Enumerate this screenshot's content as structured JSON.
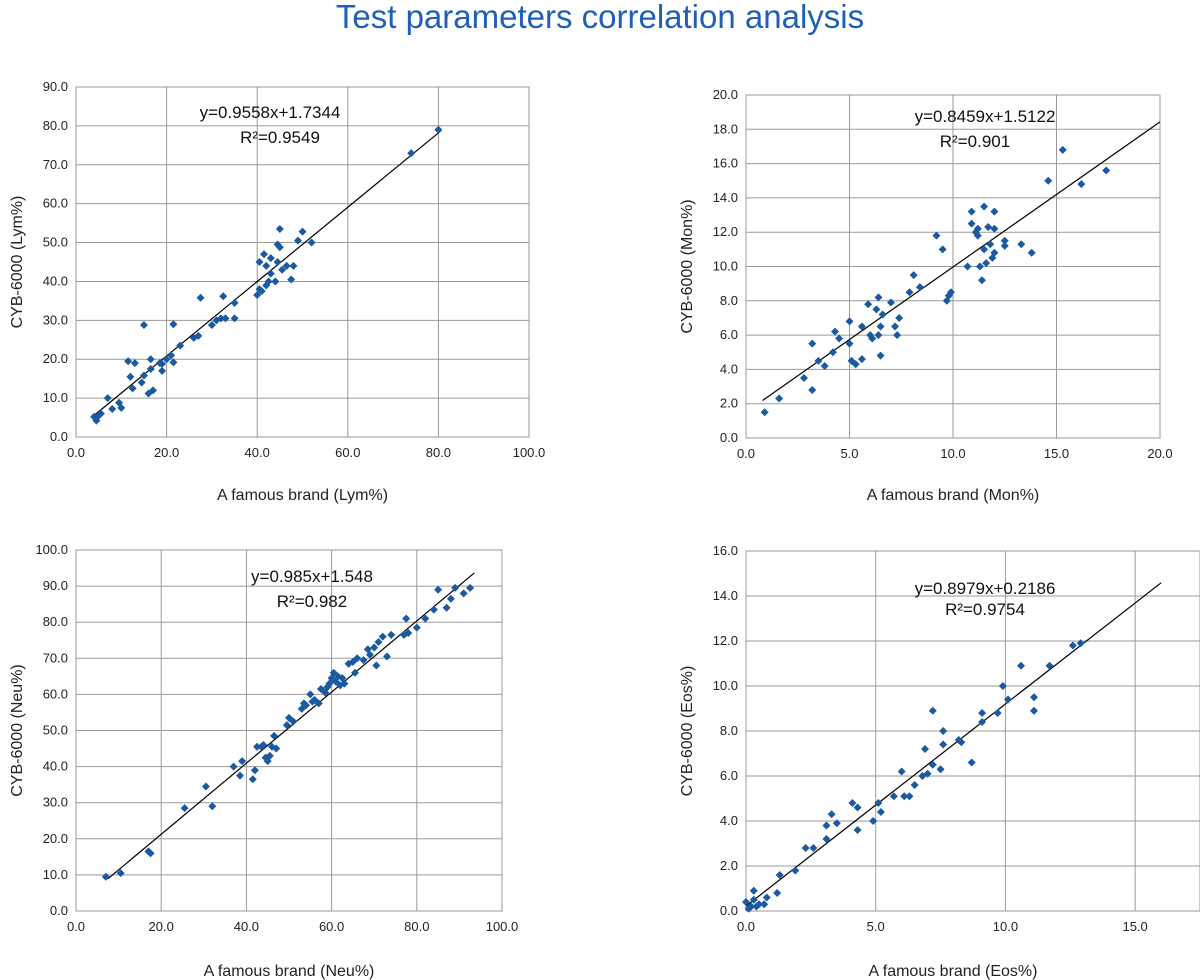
{
  "title": "Test parameters correlation analysis",
  "colors": {
    "title": "#1f5fb5",
    "marker": "#1a5aa0",
    "grid": "#9a9a9a",
    "fit_line": "#000000"
  },
  "chart_data": [
    {
      "type": "scatter",
      "xlabel": "A famous brand (Lym%)",
      "ylabel": "CYB-6000 (Lym%)",
      "equation": "y=0.9558x+1.7344",
      "r_squared": "R²=0.9549",
      "xlim": [
        0,
        100
      ],
      "ylim": [
        0,
        90
      ],
      "xticks": [
        "0.0",
        "20.0",
        "40.0",
        "60.0",
        "80.0",
        "100.0"
      ],
      "yticks": [
        "0.0",
        "10.0",
        "20.0",
        "30.0",
        "40.0",
        "50.0",
        "60.0",
        "70.0",
        "80.0",
        "90.0"
      ],
      "grid": true,
      "trendline": {
        "slope": 0.9558,
        "intercept": 1.7344,
        "x_range": [
          4,
          80.5
        ]
      },
      "points": [
        [
          4,
          5.2
        ],
        [
          4.5,
          4.2
        ],
        [
          5,
          5.5
        ],
        [
          5.5,
          6
        ],
        [
          7,
          10
        ],
        [
          8,
          7.2
        ],
        [
          9.5,
          8.8
        ],
        [
          10,
          7.5
        ],
        [
          11.5,
          19.5
        ],
        [
          12,
          15.5
        ],
        [
          12.5,
          12.5
        ],
        [
          13,
          19
        ],
        [
          14.5,
          14
        ],
        [
          15,
          15.8
        ],
        [
          15,
          28.8
        ],
        [
          16,
          11.2
        ],
        [
          16.5,
          20
        ],
        [
          17,
          12
        ],
        [
          16.5,
          17.5
        ],
        [
          18.5,
          19
        ],
        [
          19,
          17
        ],
        [
          19,
          18.8
        ],
        [
          20,
          20
        ],
        [
          21,
          21
        ],
        [
          21.5,
          29
        ],
        [
          21.5,
          19.2
        ],
        [
          23,
          23.5
        ],
        [
          26,
          25.5
        ],
        [
          27,
          26
        ],
        [
          27.5,
          35.8
        ],
        [
          30,
          28.8
        ],
        [
          31,
          30
        ],
        [
          32,
          30.5
        ],
        [
          32.5,
          36.2
        ],
        [
          33,
          30.5
        ],
        [
          35,
          34.5
        ],
        [
          35,
          30.5
        ],
        [
          40,
          36.5
        ],
        [
          40.5,
          38
        ],
        [
          40.5,
          45
        ],
        [
          41,
          37.5
        ],
        [
          41.5,
          47
        ],
        [
          42,
          39
        ],
        [
          42,
          44
        ],
        [
          42.5,
          40
        ],
        [
          43,
          42
        ],
        [
          43,
          46
        ],
        [
          44,
          40
        ],
        [
          44.5,
          49.5
        ],
        [
          44.5,
          45
        ],
        [
          45,
          48.8
        ],
        [
          45,
          53.5
        ],
        [
          45.5,
          43
        ],
        [
          46.5,
          44
        ],
        [
          47.5,
          40.5
        ],
        [
          48,
          44
        ],
        [
          49,
          50.5
        ],
        [
          50,
          52.8
        ],
        [
          52,
          50
        ],
        [
          74,
          73
        ],
        [
          80,
          79
        ]
      ]
    },
    {
      "type": "scatter",
      "xlabel": "A famous brand (Mon%)",
      "ylabel": "CYB-6000 (Mon%)",
      "equation": "y=0.8459x+1.5122",
      "r_squared": "R²=0.901",
      "xlim": [
        0,
        20
      ],
      "ylim": [
        0,
        20
      ],
      "xticks": [
        "0.0",
        "5.0",
        "10.0",
        "15.0",
        "20.0"
      ],
      "yticks": [
        "0.0",
        "2.0",
        "4.0",
        "6.0",
        "8.0",
        "10.0",
        "12.0",
        "14.0",
        "16.0",
        "18.0",
        "20.0"
      ],
      "grid": true,
      "trendline": {
        "slope": 0.8459,
        "intercept": 1.5122,
        "x_range": [
          0.8,
          20
        ]
      },
      "points": [
        [
          0.9,
          1.5
        ],
        [
          1.6,
          2.3
        ],
        [
          2.8,
          3.5
        ],
        [
          3.2,
          2.8
        ],
        [
          3.2,
          5.5
        ],
        [
          3.5,
          4.5
        ],
        [
          3.8,
          4.2
        ],
        [
          4.2,
          5
        ],
        [
          4.3,
          6.2
        ],
        [
          4.5,
          5.8
        ],
        [
          5,
          6.8
        ],
        [
          5,
          5.5
        ],
        [
          5.1,
          4.5
        ],
        [
          5.3,
          4.3
        ],
        [
          5.6,
          6.5
        ],
        [
          5.6,
          4.6
        ],
        [
          5.9,
          7.8
        ],
        [
          6,
          6
        ],
        [
          6.1,
          5.8
        ],
        [
          6.3,
          7.5
        ],
        [
          6.4,
          6
        ],
        [
          6.4,
          8.2
        ],
        [
          6.5,
          4.8
        ],
        [
          6.5,
          6.5
        ],
        [
          6.6,
          7.2
        ],
        [
          7,
          7.9
        ],
        [
          7.2,
          6.5
        ],
        [
          7.3,
          6
        ],
        [
          7.4,
          7
        ],
        [
          7.9,
          8.5
        ],
        [
          8.1,
          9.5
        ],
        [
          8.4,
          8.8
        ],
        [
          9.2,
          11.8
        ],
        [
          9.5,
          11
        ],
        [
          9.7,
          8
        ],
        [
          9.8,
          8.3
        ],
        [
          9.9,
          8.5
        ],
        [
          10.7,
          10
        ],
        [
          10.9,
          12.5
        ],
        [
          10.9,
          13.2
        ],
        [
          11.1,
          12
        ],
        [
          11.2,
          12.2
        ],
        [
          11.2,
          11.8
        ],
        [
          11.3,
          10
        ],
        [
          11.4,
          9.2
        ],
        [
          11.5,
          13.5
        ],
        [
          11.5,
          11
        ],
        [
          11.6,
          10.2
        ],
        [
          11.7,
          12.3
        ],
        [
          11.8,
          11.3
        ],
        [
          11.9,
          10.5
        ],
        [
          12,
          12.2
        ],
        [
          12,
          10.8
        ],
        [
          12,
          13.2
        ],
        [
          12.5,
          11.5
        ],
        [
          12.5,
          11.2
        ],
        [
          13.3,
          11.3
        ],
        [
          13.8,
          10.8
        ],
        [
          14.6,
          15
        ],
        [
          15.3,
          16.8
        ],
        [
          16.2,
          14.8
        ],
        [
          17.4,
          15.6
        ]
      ]
    },
    {
      "type": "scatter",
      "xlabel": "A famous brand (Neu%)",
      "ylabel": "CYB-6000 (Neu%)",
      "equation": "y=0.985x+1.548",
      "r_squared": "R²=0.982",
      "xlim": [
        0,
        100
      ],
      "ylim": [
        0,
        100
      ],
      "xticks": [
        "0.0",
        "20.0",
        "40.0",
        "60.0",
        "80.0",
        "100.0"
      ],
      "yticks": [
        "0.0",
        "10.0",
        "20.0",
        "30.0",
        "40.0",
        "50.0",
        "60.0",
        "70.0",
        "80.0",
        "90.0",
        "100.0"
      ],
      "grid": true,
      "trendline": {
        "slope": 0.985,
        "intercept": 1.548,
        "x_range": [
          7.5,
          93.5
        ]
      },
      "points": [
        [
          7,
          9.5
        ],
        [
          10.5,
          10.5
        ],
        [
          17,
          16.5
        ],
        [
          17.5,
          16
        ],
        [
          25.5,
          28.5
        ],
        [
          30.5,
          34.5
        ],
        [
          32,
          29
        ],
        [
          37,
          40
        ],
        [
          38.5,
          37.5
        ],
        [
          39,
          41.5
        ],
        [
          41.5,
          36.5
        ],
        [
          42,
          39
        ],
        [
          42.5,
          45.5
        ],
        [
          43.5,
          45.5
        ],
        [
          44,
          46
        ],
        [
          44.5,
          42.5
        ],
        [
          45,
          41.5
        ],
        [
          45.5,
          43
        ],
        [
          46,
          45.5
        ],
        [
          46.5,
          48.5
        ],
        [
          47,
          45
        ],
        [
          49.5,
          51.5
        ],
        [
          50,
          53.5
        ],
        [
          51,
          52.5
        ],
        [
          53,
          56
        ],
        [
          53.5,
          57.5
        ],
        [
          54,
          57
        ],
        [
          55,
          60
        ],
        [
          55.5,
          58
        ],
        [
          56,
          58.5
        ],
        [
          57,
          57.5
        ],
        [
          57.5,
          61.5
        ],
        [
          58.5,
          60.5
        ],
        [
          59,
          62
        ],
        [
          59.5,
          63
        ],
        [
          60,
          64.5
        ],
        [
          60.5,
          66
        ],
        [
          61,
          63.5
        ],
        [
          61.5,
          65
        ],
        [
          62,
          62.5
        ],
        [
          62.5,
          64.5
        ],
        [
          63,
          63
        ],
        [
          64,
          68.5
        ],
        [
          65,
          69
        ],
        [
          65.5,
          66
        ],
        [
          66,
          70
        ],
        [
          67.5,
          69.5
        ],
        [
          68.5,
          72.5
        ],
        [
          69,
          71
        ],
        [
          70,
          73
        ],
        [
          70.5,
          68
        ],
        [
          71,
          74.5
        ],
        [
          72,
          76
        ],
        [
          73,
          70.5
        ],
        [
          74,
          76.5
        ],
        [
          77,
          76.5
        ],
        [
          77.5,
          81
        ],
        [
          78,
          77
        ],
        [
          80,
          78.5
        ],
        [
          82,
          81
        ],
        [
          84,
          83.5
        ],
        [
          85,
          89
        ],
        [
          87,
          84
        ],
        [
          88,
          86.5
        ],
        [
          89,
          89.5
        ],
        [
          91,
          88
        ],
        [
          92.5,
          89.5
        ]
      ]
    },
    {
      "type": "scatter",
      "xlabel": "A famous brand (Eos%)",
      "ylabel": "CYB-6000 (Eos%)",
      "equation": "y=0.8979x+0.2186",
      "r_squared": "R²=0.9754",
      "xlim": [
        0,
        17.5
      ],
      "ylim": [
        0,
        16
      ],
      "xticks": [
        "0.0",
        "5.0",
        "10.0",
        "15.0"
      ],
      "yticks": [
        "0.0",
        "2.0",
        "4.0",
        "6.0",
        "8.0",
        "10.0",
        "12.0",
        "14.0",
        "16.0"
      ],
      "grid": true,
      "trendline": {
        "slope": 0.8979,
        "intercept": 0.2186,
        "x_range": [
          0,
          16
        ]
      },
      "points": [
        [
          0,
          0.4
        ],
        [
          0.1,
          0.1
        ],
        [
          0.2,
          0.2
        ],
        [
          0.3,
          0.9
        ],
        [
          0.3,
          0.5
        ],
        [
          0.4,
          0.2
        ],
        [
          0.5,
          0.3
        ],
        [
          0.7,
          0.3
        ],
        [
          0.8,
          0.6
        ],
        [
          1.2,
          0.8
        ],
        [
          1.3,
          1.6
        ],
        [
          1.9,
          1.8
        ],
        [
          2.3,
          2.8
        ],
        [
          2.6,
          2.8
        ],
        [
          3.1,
          3.2
        ],
        [
          3.1,
          3.8
        ],
        [
          3.3,
          4.3
        ],
        [
          3.5,
          3.9
        ],
        [
          4.1,
          4.8
        ],
        [
          4.3,
          4.6
        ],
        [
          4.3,
          3.6
        ],
        [
          4.9,
          4
        ],
        [
          5.1,
          4.8
        ],
        [
          5.2,
          4.4
        ],
        [
          5.7,
          5.1
        ],
        [
          6,
          6.2
        ],
        [
          6.1,
          5.1
        ],
        [
          6.3,
          5.1
        ],
        [
          6.5,
          5.6
        ],
        [
          6.8,
          6
        ],
        [
          6.9,
          7.2
        ],
        [
          7,
          6.1
        ],
        [
          7.2,
          6.5
        ],
        [
          7.2,
          8.9
        ],
        [
          7.5,
          6.3
        ],
        [
          7.6,
          8
        ],
        [
          7.6,
          7.4
        ],
        [
          8.2,
          7.6
        ],
        [
          8.3,
          7.5
        ],
        [
          8.7,
          6.6
        ],
        [
          9.1,
          8.8
        ],
        [
          9.1,
          8.4
        ],
        [
          9.7,
          8.8
        ],
        [
          9.9,
          10
        ],
        [
          10.1,
          9.4
        ],
        [
          10.6,
          10.9
        ],
        [
          11.1,
          9.5
        ],
        [
          11.1,
          8.9
        ],
        [
          11.7,
          10.9
        ],
        [
          12.6,
          11.8
        ],
        [
          12.9,
          11.9
        ]
      ]
    }
  ]
}
